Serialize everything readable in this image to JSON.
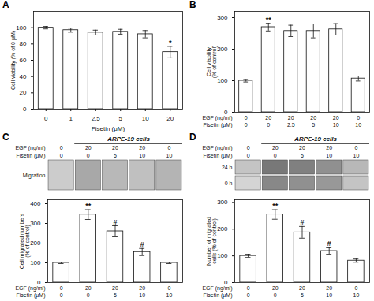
{
  "chart_data": [
    {
      "type": "bar",
      "title": "A",
      "categories": [
        "0",
        "1",
        "2.5",
        "5",
        "10",
        "20"
      ],
      "values": [
        100,
        97,
        94,
        95,
        92,
        70
      ],
      "errors": [
        1.5,
        2.5,
        3,
        3,
        4.5,
        7
      ],
      "annotations": [
        null,
        null,
        null,
        null,
        null,
        "*"
      ],
      "xlabel": "Fisetin (μM)",
      "ylabel": "Cell viability (% of 0 μM)",
      "ylim": [
        0,
        120
      ],
      "yticks": [
        0,
        20,
        40,
        60,
        80,
        100
      ],
      "color": "#ffffff"
    },
    {
      "type": "bar",
      "title": "B",
      "category_rows": [
        {
          "label": "EGF (ng/ml)",
          "values": [
            "0",
            "20",
            "20",
            "20",
            "20",
            "0"
          ]
        },
        {
          "label": "Fisetin (μM)",
          "values": [
            "0",
            "0",
            "2.5",
            "5",
            "10",
            "10"
          ]
        }
      ],
      "values": [
        100,
        270,
        258,
        258,
        263,
        107
      ],
      "errors": [
        4,
        12,
        18,
        22,
        18,
        8
      ],
      "annotations": [
        null,
        "**",
        null,
        null,
        null,
        null
      ],
      "ylabel": "Cell viability\n(% of control)",
      "ylim": [
        0,
        320
      ],
      "yticks": [
        0,
        100,
        200,
        300
      ],
      "color": "#ffffff"
    },
    {
      "type": "bar",
      "title": "C",
      "subtitle": "ARPE-19 cells",
      "category_rows": [
        {
          "label": "EGF (ng/ml)",
          "values": [
            "0",
            "20",
            "20",
            "20",
            "0"
          ]
        },
        {
          "label": "Fisetin (μM)",
          "values": [
            "0",
            "0",
            "5",
            "10",
            "10"
          ]
        }
      ],
      "image_strips": [
        {
          "label": "Migration",
          "colors": [
            "#cccccc",
            "#a8a8a8",
            "#b8b8b8",
            "#c0c0c0",
            "#b4b4b4"
          ]
        }
      ],
      "values": [
        100,
        345,
        260,
        155,
        100
      ],
      "errors": [
        4,
        25,
        28,
        18,
        4
      ],
      "annotations": [
        null,
        "**",
        "#",
        "#",
        null
      ],
      "ylabel": "Cell migrated numbers\n(% of control)",
      "ylim": [
        0,
        420
      ],
      "yticks": [
        0,
        100,
        200,
        300,
        400
      ],
      "color": "#ffffff"
    },
    {
      "type": "bar",
      "title": "D",
      "subtitle": "ARPE-19 cells",
      "category_rows": [
        {
          "label": "EGF (ng/ml)",
          "values": [
            "0",
            "20",
            "20",
            "20",
            "0"
          ]
        },
        {
          "label": "Fisetin (μM)",
          "values": [
            "0",
            "0",
            "5",
            "10",
            "10"
          ]
        }
      ],
      "image_strips": [
        {
          "label": "24 h",
          "colors": [
            "#c4c4c4",
            "#787878",
            "#808080",
            "#909090",
            "#b8b8b8"
          ]
        },
        {
          "label": "0 h",
          "colors": [
            "#d4d4d4",
            "#888888",
            "#909090",
            "#989898",
            "#c4c4c4"
          ]
        }
      ],
      "values": [
        100,
        255,
        188,
        118,
        82
      ],
      "errors": [
        6,
        18,
        22,
        12,
        6
      ],
      "annotations": [
        null,
        "**",
        "#",
        "#",
        null
      ],
      "ylabel": "Number of migrated\ncells (% of control)",
      "ylim": [
        0,
        310
      ],
      "yticks": [
        0,
        100,
        200,
        300
      ],
      "color": "#ffffff"
    }
  ]
}
